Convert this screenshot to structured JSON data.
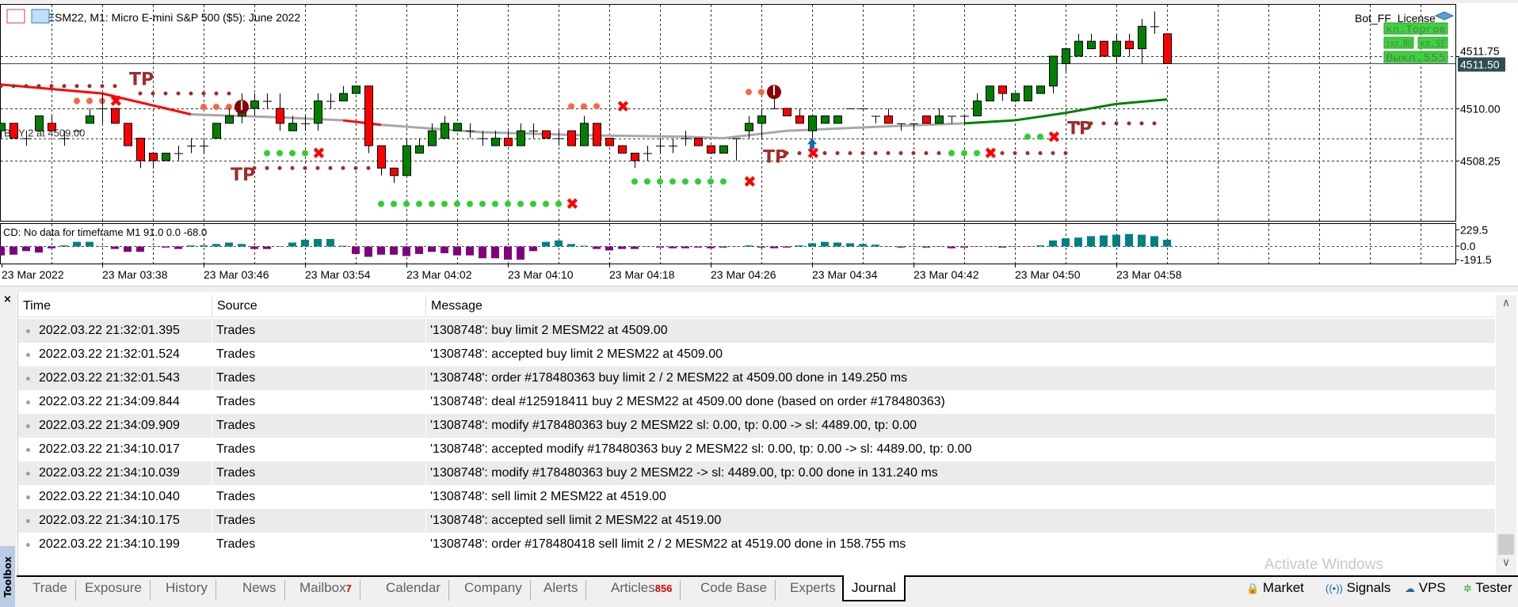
{
  "chart": {
    "title": "MESM22, M1:  Micro E-mini S&P 500 ($5): June 2022",
    "license_label": "Bot_FF_License",
    "panel_buttons": [
      "кл.Торгов",
      "ıкл.BU",
      "кл.SE",
      "Выкл.555"
    ],
    "order_label": "BUY 2 at 4509.00",
    "current_price": "4511.50",
    "price_ticks": [
      {
        "label": "4511.75",
        "value": 4511.75
      },
      {
        "label": "4510.00",
        "value": 4510.0
      },
      {
        "label": "4508.25",
        "value": 4508.25
      }
    ],
    "order_line_price": 4509.0,
    "sub_title": "CD: No data for timeframe M1 91.0 0.0 -68.0",
    "sub_ticks": [
      {
        "label": "229.5",
        "value": 229.5
      },
      {
        "label": "0.0",
        "value": 0
      },
      {
        "label": "-191.5",
        "value": -191.5
      }
    ],
    "time_labels": [
      {
        "label": "23 Mar 2022",
        "index": 0
      },
      {
        "label": "23 Mar 03:38",
        "index": 8
      },
      {
        "label": "23 Mar 03:46",
        "index": 16
      },
      {
        "label": "23 Mar 03:54",
        "index": 24
      },
      {
        "label": "23 Mar 04:02",
        "index": 32
      },
      {
        "label": "23 Mar 04:10",
        "index": 40
      },
      {
        "label": "23 Mar 04:18",
        "index": 48
      },
      {
        "label": "23 Mar 04:26",
        "index": 56
      },
      {
        "label": "23 Mar 04:34",
        "index": 64
      },
      {
        "label": "23 Mar 04:42",
        "index": 72
      },
      {
        "label": "23 Mar 04:50",
        "index": 80
      },
      {
        "label": "23 Mar 04:58",
        "index": 88
      }
    ],
    "colors": {
      "bull": "#008000",
      "bear": "#ff0000",
      "ma_red": "#ff0000",
      "ma_gray": "#a8a8a8",
      "ma_green": "#008000",
      "cd_pos": "#008080",
      "cd_neg": "#800080",
      "tp": "#a52a2a",
      "salmon": "#ff6347",
      "green_dot": "#32cd32",
      "x": "#ff0000",
      "price_box": "#2f4f4f"
    },
    "candles": [
      [
        4509.25,
        4509.5,
        4509.0,
        4509.5
      ],
      [
        4509.5,
        4509.5,
        4509.0,
        4509.0
      ],
      [
        4509.0,
        4509.25,
        4508.75,
        4509.0
      ],
      [
        4509.25,
        4509.75,
        4509.25,
        4509.75
      ],
      [
        4509.5,
        4509.75,
        4509.25,
        4509.25
      ],
      [
        4509.0,
        4509.25,
        4508.75,
        4509.0
      ],
      [
        4509.25,
        4509.25,
        4509.25,
        4509.25
      ],
      [
        4509.5,
        4510.0,
        4509.5,
        4509.75
      ],
      [
        4510.0,
        4510.5,
        4509.5,
        4510.0
      ],
      [
        4510.0,
        4510.0,
        4509.5,
        4509.5
      ],
      [
        4509.5,
        4509.5,
        4508.75,
        4508.75
      ],
      [
        4509.0,
        4509.0,
        4508.0,
        4508.25
      ],
      [
        4508.5,
        4508.5,
        4508.0,
        4508.25
      ],
      [
        4508.25,
        4508.5,
        4508.25,
        4508.5
      ],
      [
        4508.5,
        4508.75,
        4508.25,
        4508.5
      ],
      [
        4508.75,
        4509.0,
        4508.5,
        4508.75
      ],
      [
        4508.75,
        4509.0,
        4508.5,
        4508.75
      ],
      [
        4509.0,
        4509.5,
        4509.0,
        4509.5
      ],
      [
        4509.5,
        4510.0,
        4509.5,
        4509.75
      ],
      [
        4509.75,
        4510.5,
        4509.5,
        4510.0
      ],
      [
        4510.0,
        4510.5,
        4509.75,
        4510.25
      ],
      [
        4510.25,
        4510.5,
        4510.0,
        4510.25
      ],
      [
        4510.0,
        4510.5,
        4509.25,
        4509.5
      ],
      [
        4509.25,
        4509.75,
        4509.25,
        4509.5
      ],
      [
        4509.5,
        4509.75,
        4509.25,
        4509.5
      ],
      [
        4509.5,
        4510.5,
        4509.25,
        4510.25
      ],
      [
        4510.25,
        4510.5,
        4510.0,
        4510.25
      ],
      [
        4510.25,
        4510.75,
        4510.25,
        4510.5
      ],
      [
        4510.5,
        4510.75,
        4510.5,
        4510.75
      ],
      [
        4510.75,
        4510.75,
        4508.5,
        4508.75
      ],
      [
        4508.75,
        4508.75,
        4507.75,
        4508.0
      ],
      [
        4508.0,
        4508.0,
        4507.5,
        4507.75
      ],
      [
        4507.75,
        4509.0,
        4507.75,
        4508.75
      ],
      [
        4508.5,
        4509.0,
        4508.5,
        4508.75
      ],
      [
        4508.75,
        4509.5,
        4508.75,
        4509.25
      ],
      [
        4509.0,
        4509.75,
        4509.0,
        4509.5
      ],
      [
        4509.25,
        4509.5,
        4509.25,
        4509.5
      ],
      [
        4509.25,
        4509.5,
        4509.0,
        4509.25
      ],
      [
        4509.0,
        4509.25,
        4508.75,
        4509.0
      ],
      [
        4508.75,
        4509.25,
        4508.75,
        4509.0
      ],
      [
        4509.0,
        4509.25,
        4508.75,
        4508.75
      ],
      [
        4508.75,
        4509.5,
        4508.75,
        4509.25
      ],
      [
        4509.25,
        4509.5,
        4509.0,
        4509.25
      ],
      [
        4509.25,
        4509.25,
        4509.0,
        4509.0
      ],
      [
        4509.0,
        4509.25,
        4508.75,
        4509.0
      ],
      [
        4509.25,
        4509.25,
        4508.75,
        4508.75
      ],
      [
        4508.75,
        4509.75,
        4508.75,
        4509.5
      ],
      [
        4509.5,
        4509.5,
        4508.75,
        4508.75
      ],
      [
        4509.0,
        4509.0,
        4508.75,
        4508.75
      ],
      [
        4508.75,
        4508.75,
        4508.5,
        4508.5
      ],
      [
        4508.5,
        4508.5,
        4508.0,
        4508.25
      ],
      [
        4508.5,
        4508.75,
        4508.25,
        4508.5
      ],
      [
        4508.75,
        4509.0,
        4508.5,
        4508.75
      ],
      [
        4508.75,
        4509.0,
        4508.5,
        4508.75
      ],
      [
        4509.0,
        4509.25,
        4508.75,
        4509.0
      ],
      [
        4509.0,
        4509.0,
        4508.75,
        4508.75
      ],
      [
        4508.75,
        4508.75,
        4508.5,
        4508.5
      ],
      [
        4508.5,
        4508.75,
        4508.5,
        4508.75
      ],
      [
        4509.0,
        4509.0,
        4508.25,
        4509.0
      ],
      [
        4509.25,
        4509.75,
        4509.0,
        4509.5
      ],
      [
        4509.5,
        4510.0,
        4509.0,
        4509.75
      ],
      [
        4510.0,
        4510.5,
        4510.0,
        4510.0
      ],
      [
        4510.0,
        4510.0,
        4509.75,
        4509.75
      ],
      [
        4509.75,
        4510.0,
        4509.5,
        4509.5
      ],
      [
        4509.25,
        4509.75,
        4509.0,
        4509.75
      ],
      [
        4509.5,
        4509.75,
        4509.5,
        4509.75
      ],
      [
        4509.5,
        4509.75,
        4509.5,
        4509.75
      ],
      [
        4510.0,
        4510.0,
        4510.0,
        4510.0
      ],
      [
        4510.0,
        4510.0,
        4510.0,
        4510.0
      ],
      [
        4509.75,
        4509.75,
        4509.5,
        4509.75
      ],
      [
        4509.75,
        4510.0,
        4509.5,
        4509.5
      ],
      [
        4509.5,
        4509.5,
        4509.25,
        4509.5
      ],
      [
        4509.5,
        4509.5,
        4509.25,
        4509.5
      ],
      [
        4509.75,
        4509.75,
        4509.5,
        4509.5
      ],
      [
        4509.5,
        4510.0,
        4509.5,
        4509.75
      ],
      [
        4509.75,
        4509.75,
        4509.5,
        4509.75
      ],
      [
        4509.75,
        4509.75,
        4509.5,
        4509.75
      ],
      [
        4509.75,
        4510.5,
        4509.75,
        4510.25
      ],
      [
        4510.25,
        4510.75,
        4510.25,
        4510.75
      ],
      [
        4510.75,
        4510.75,
        4510.25,
        4510.5
      ],
      [
        4510.25,
        4510.5,
        4510.25,
        4510.5
      ],
      [
        4510.25,
        4510.75,
        4510.25,
        4510.75
      ],
      [
        4510.5,
        4510.75,
        4510.5,
        4510.75
      ],
      [
        4510.75,
        4511.75,
        4510.5,
        4511.75
      ],
      [
        4511.5,
        4512.0,
        4511.25,
        4512.0
      ],
      [
        4511.75,
        4512.5,
        4511.75,
        4512.25
      ],
      [
        4512.0,
        4512.5,
        4512.0,
        4512.25
      ],
      [
        4512.25,
        4512.25,
        4511.75,
        4511.75
      ],
      [
        4511.75,
        4512.5,
        4511.5,
        4512.25
      ],
      [
        4512.25,
        4512.5,
        4511.75,
        4512.0
      ],
      [
        4512.0,
        4513.0,
        4511.5,
        4512.75
      ],
      [
        4512.75,
        4513.25,
        4512.5,
        4512.75
      ],
      [
        4512.5,
        4512.5,
        4511.5,
        4511.5
      ]
    ],
    "ma": [
      {
        "i": 0,
        "p": 4510.8,
        "c": "ma_red"
      },
      {
        "i": 8,
        "p": 4510.5,
        "c": "ma_red"
      },
      {
        "i": 15,
        "p": 4509.8,
        "c": "ma_gray"
      },
      {
        "i": 22,
        "p": 4509.7,
        "c": "ma_gray"
      },
      {
        "i": 27,
        "p": 4509.6,
        "c": "ma_red"
      },
      {
        "i": 30,
        "p": 4509.45,
        "c": "ma_gray"
      },
      {
        "i": 38,
        "p": 4509.2,
        "c": "ma_gray"
      },
      {
        "i": 46,
        "p": 4509.1,
        "c": "ma_gray"
      },
      {
        "i": 54,
        "p": 4509.05,
        "c": "ma_gray"
      },
      {
        "i": 57,
        "p": 4509.0,
        "c": "ma_gray"
      },
      {
        "i": 62,
        "p": 4509.25,
        "c": "ma_gray"
      },
      {
        "i": 70,
        "p": 4509.4,
        "c": "ma_gray"
      },
      {
        "i": 76,
        "p": 4509.5,
        "c": "ma_green"
      },
      {
        "i": 80,
        "p": 4509.6,
        "c": "ma_green"
      },
      {
        "i": 84,
        "p": 4509.85,
        "c": "ma_green"
      },
      {
        "i": 88,
        "p": 4510.15,
        "c": "ma_green"
      },
      {
        "i": 92,
        "p": 4510.3
      }
    ],
    "cd_values": [
      -130,
      -120,
      -70,
      -90,
      -30,
      10,
      60,
      60,
      0,
      -40,
      -80,
      -80,
      -10,
      -20,
      -40,
      10,
      10,
      30,
      50,
      30,
      -40,
      -40,
      0,
      50,
      90,
      100,
      100,
      5,
      -110,
      -150,
      -120,
      -120,
      -140,
      -110,
      -80,
      -100,
      -130,
      -130,
      -170,
      -170,
      -190,
      -190,
      -70,
      60,
      80,
      30,
      5,
      -40,
      -60,
      -40,
      -40,
      -10,
      -20,
      -30,
      -30,
      -20,
      -30,
      -20,
      -10,
      10,
      -20,
      -30,
      -20,
      10,
      40,
      60,
      50,
      40,
      30,
      20,
      -10,
      -20,
      -10,
      -20,
      -10,
      -30,
      -20,
      -10,
      -10,
      -20,
      -10,
      -10,
      10,
      80,
      110,
      120,
      140,
      150,
      160,
      170,
      160,
      140,
      90
    ],
    "dot_lines": [
      {
        "from": 0,
        "to": 9,
        "price": 4510.75,
        "kind": "tp"
      },
      {
        "from": 11,
        "to": 18,
        "price": 4510.5,
        "kind": "tp"
      },
      {
        "from": 6,
        "to": 8,
        "price": 4510.25,
        "kind": "salmon"
      },
      {
        "from": 16,
        "to": 18,
        "price": 4510.05,
        "kind": "salmon"
      },
      {
        "from": 21,
        "to": 24,
        "price": 4508.5,
        "kind": "green_dot"
      },
      {
        "from": 20,
        "to": 29,
        "price": 4508.0,
        "kind": "tp"
      },
      {
        "from": 30,
        "to": 44,
        "price": 4506.8,
        "kind": "green_dot"
      },
      {
        "from": 45,
        "to": 47,
        "price": 4510.07,
        "kind": "salmon"
      },
      {
        "from": 50,
        "to": 57,
        "price": 4507.55,
        "kind": "green_dot"
      },
      {
        "from": 59,
        "to": 60,
        "price": 4510.55,
        "kind": "salmon"
      },
      {
        "from": 62,
        "to": 84,
        "price": 4508.5,
        "kind": "tp"
      },
      {
        "from": 75,
        "to": 77,
        "price": 4508.5,
        "kind": "green_dot"
      },
      {
        "from": 81,
        "to": 82,
        "price": 4509.05,
        "kind": "green_dot"
      },
      {
        "from": 85,
        "to": 91,
        "price": 4509.5,
        "kind": "tp"
      }
    ],
    "x_marks": [
      {
        "i": 9,
        "p": 4510.25
      },
      {
        "i": 25,
        "p": 4508.5
      },
      {
        "i": 45,
        "p": 4506.8
      },
      {
        "i": 49,
        "p": 4510.07
      },
      {
        "i": 59,
        "p": 4507.55
      },
      {
        "i": 64,
        "p": 4508.5
      },
      {
        "i": 78,
        "p": 4508.5
      },
      {
        "i": 83,
        "p": 4509.05
      }
    ],
    "tp_labels": [
      {
        "text": "TP",
        "i": 10,
        "p": 4511.05
      },
      {
        "text": "TP",
        "i": 18,
        "p": 4507.85
      },
      {
        "text": "TP",
        "i": 60,
        "p": 4508.45
      },
      {
        "text": "TP",
        "i": 84,
        "p": 4509.4
      }
    ],
    "exit_icons": [
      {
        "i": 19,
        "p": 4510.05
      },
      {
        "i": 61,
        "p": 4510.55
      }
    ],
    "buy_arrows": [
      {
        "i": 64,
        "p": 4508.8
      }
    ]
  },
  "journal": {
    "columns": [
      "Time",
      "Source",
      "Message"
    ],
    "rows": [
      {
        "time": "2022.03.22 21:32:01.395",
        "source": "Trades",
        "message": "'1308748': buy limit 2 MESM22 at 4509.00"
      },
      {
        "time": "2022.03.22 21:32:01.524",
        "source": "Trades",
        "message": "'1308748': accepted buy limit 2 MESM22 at 4509.00"
      },
      {
        "time": "2022.03.22 21:32:01.543",
        "source": "Trades",
        "message": "'1308748': order #178480363 buy limit 2 / 2 MESM22 at 4509.00 done in 149.250 ms"
      },
      {
        "time": "2022.03.22 21:34:09.844",
        "source": "Trades",
        "message": "'1308748': deal #125918411 buy 2 MESM22 at 4509.00 done (based on order #178480363)"
      },
      {
        "time": "2022.03.22 21:34:09.909",
        "source": "Trades",
        "message": "'1308748': modify #178480363 buy 2 MESM22 sl: 0.00, tp: 0.00 -> sl: 4489.00, tp: 0.00"
      },
      {
        "time": "2022.03.22 21:34:10.017",
        "source": "Trades",
        "message": "'1308748': accepted modify #178480363 buy 2 MESM22 sl: 0.00, tp: 0.00 -> sl: 4489.00, tp: 0.00"
      },
      {
        "time": "2022.03.22 21:34:10.039",
        "source": "Trades",
        "message": "'1308748': modify #178480363 buy 2 MESM22 -> sl: 4489.00, tp: 0.00 done in 131.240 ms"
      },
      {
        "time": "2022.03.22 21:34:10.040",
        "source": "Trades",
        "message": "'1308748': sell limit 2 MESM22 at 4519.00"
      },
      {
        "time": "2022.03.22 21:34:10.175",
        "source": "Trades",
        "message": "'1308748': accepted sell limit 2 MESM22 at 4519.00"
      },
      {
        "time": "2022.03.22 21:34:10.199",
        "source": "Trades",
        "message": "'1308748': order #178480418 sell limit 2 / 2 MESM22 at 4519.00 done in 158.755 ms"
      }
    ]
  },
  "toolbox": {
    "label": "Toolbox",
    "close": "×",
    "tabs": [
      {
        "label": "Trade"
      },
      {
        "label": "Exposure"
      },
      {
        "label": "History"
      },
      {
        "label": "News"
      },
      {
        "label": "Mailbox",
        "badge": "7"
      },
      {
        "label": "Calendar"
      },
      {
        "label": "Company"
      },
      {
        "label": "Alerts"
      },
      {
        "label": "Articles",
        "badge": "856"
      },
      {
        "label": "Code Base"
      },
      {
        "label": "Experts"
      },
      {
        "label": "Journal",
        "active": true
      }
    ],
    "right_tools": [
      {
        "label": "Market",
        "icon": "bag-icon"
      },
      {
        "label": "Signals",
        "icon": "signal-icon"
      },
      {
        "label": "VPS",
        "icon": "cloud-icon"
      },
      {
        "label": "Tester",
        "icon": "tester-icon"
      }
    ]
  },
  "watermark": "Activate Windows"
}
